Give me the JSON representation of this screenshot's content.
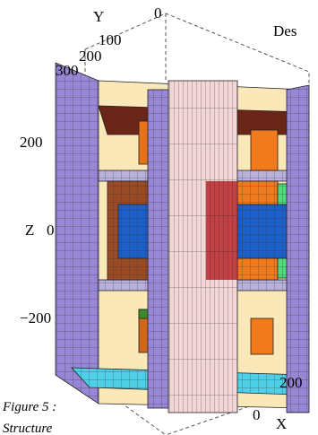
{
  "header": {
    "text": "Des"
  },
  "axes": {
    "y": {
      "label": "Y",
      "ticks": [
        "0",
        "100",
        "200",
        "300"
      ]
    },
    "z": {
      "label": "Z",
      "ticks": [
        "200",
        "0",
        "−200"
      ]
    },
    "x": {
      "label": "X",
      "ticks": [
        "200",
        "0"
      ]
    }
  },
  "caption": {
    "line1": "Figure 5 :",
    "line2": "Structure"
  }
}
